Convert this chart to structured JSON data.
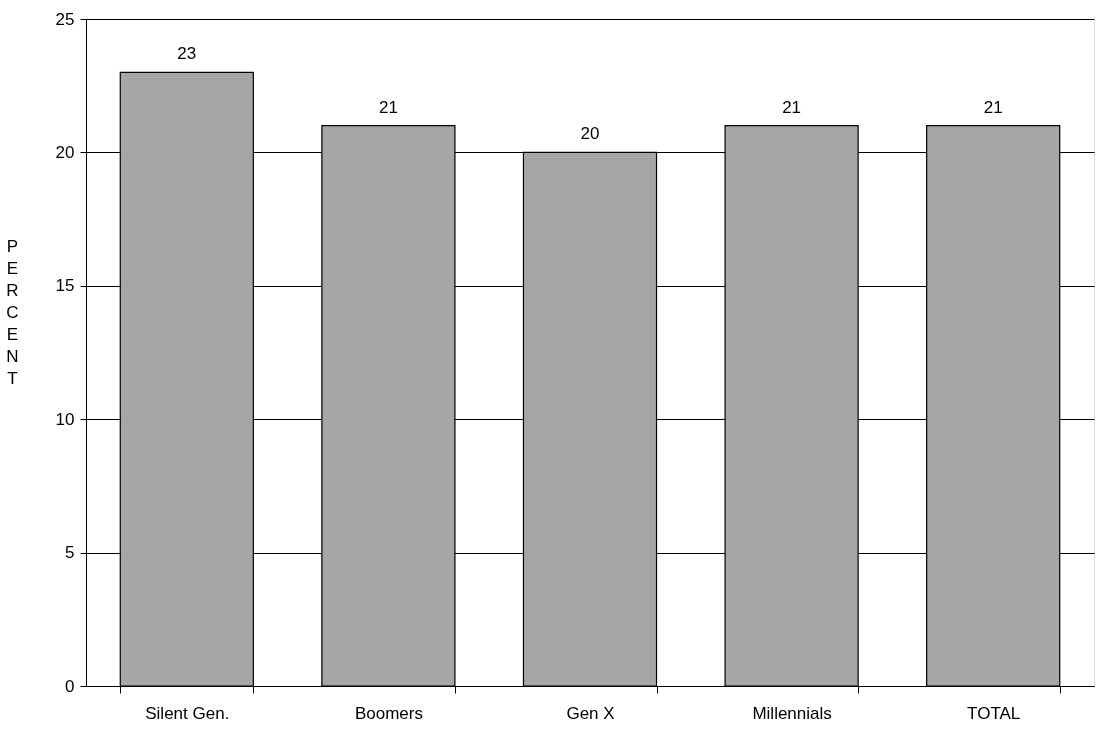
{
  "chart_data": {
    "type": "bar",
    "ylabel": "PERCENT",
    "categories": [
      "Silent Gen.",
      "Boomers",
      "Gen X",
      "Millennials",
      "TOTAL"
    ],
    "values": [
      23,
      21,
      20,
      21,
      21
    ],
    "color": "#a6a6a6",
    "ylim": [
      0,
      25
    ],
    "yticks": [
      0,
      5,
      10,
      15,
      20,
      25
    ],
    "grid": "y",
    "data_labels": true
  }
}
